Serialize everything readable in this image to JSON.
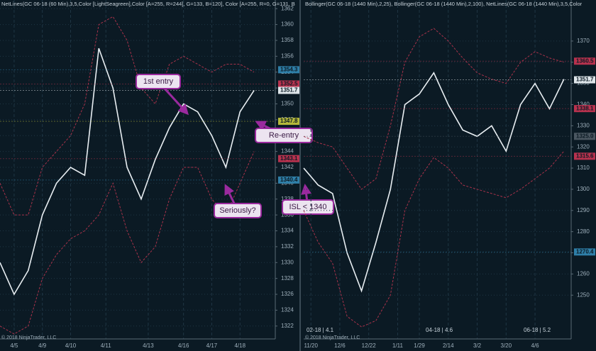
{
  "chart_data": [
    {
      "type": "line",
      "header": "NetLines(GC 06-18 (60 Min),3,5,Color [LightSeagreen],Color [A=255, R=244], G=133, B=120], Color [A=255, R=0, G=131, B",
      "footer": "© 2018 NinjaTrader, LLC",
      "xlim": [
        0,
        39
      ],
      "xticks": [
        {
          "value": 2,
          "label": "4/5"
        },
        {
          "value": 6,
          "label": "4/9"
        },
        {
          "value": 10,
          "label": "4/10"
        },
        {
          "value": 15,
          "label": "4/11"
        },
        {
          "value": 21,
          "label": "4/13"
        },
        {
          "value": 26,
          "label": "4/16"
        },
        {
          "value": 30,
          "label": "4/17"
        },
        {
          "value": 34,
          "label": "4/18"
        }
      ],
      "ylim": [
        1321,
        1363
      ],
      "yticks": [
        1322,
        1324,
        1326,
        1328,
        1330,
        1332,
        1334,
        1336,
        1338,
        1340,
        1342,
        1344,
        1346,
        1348,
        1350,
        1352,
        1354,
        1356,
        1358,
        1360,
        1362
      ],
      "grid": true,
      "x": [
        0,
        2,
        4,
        6,
        8,
        10,
        12,
        14,
        16,
        18,
        20,
        22,
        24,
        26,
        28,
        30,
        32,
        34,
        36
      ],
      "series": [
        {
          "name": "Price",
          "color": "#e8eef2",
          "values": [
            1330,
            1326,
            1329,
            1336,
            1340,
            1342,
            1341,
            1357,
            1352,
            1342,
            1338,
            1343,
            1347,
            1350,
            1349,
            1346,
            1342,
            1349,
            1351.7
          ]
        },
        {
          "name": "Upper band",
          "color": "#a8324a",
          "values": [
            1340,
            1336,
            1336,
            1342,
            1344,
            1346,
            1350,
            1360,
            1361,
            1358,
            1352,
            1350,
            1355,
            1356,
            1355,
            1354,
            1355,
            1355,
            1354
          ]
        },
        {
          "name": "Lower band",
          "color": "#a8324a",
          "values": [
            1322,
            1321,
            1322,
            1328,
            1331,
            1333,
            1334,
            1336,
            1340,
            1334,
            1330,
            1332,
            1338,
            1342,
            1342,
            1338,
            1336,
            1340,
            1344
          ]
        }
      ],
      "price_markers": [
        {
          "value": 1354.3,
          "label": "1354.3",
          "color": "#2f7fa8"
        },
        {
          "value": 1352.5,
          "label": "1352.5",
          "color": "#b8324e"
        },
        {
          "value": 1351.7,
          "label": "1351.7",
          "color": "#dfe6ea"
        },
        {
          "value": 1347.8,
          "label": "1347.8",
          "color": "#b5b83a"
        },
        {
          "value": 1343.1,
          "label": "1343.1",
          "color": "#b8324e"
        },
        {
          "value": 1340.4,
          "label": "1340.4",
          "color": "#2f7fa8"
        }
      ],
      "annotations": [
        "1st entry",
        "Re-entry",
        "Seriously?",
        "ISL < 1340"
      ]
    },
    {
      "type": "line",
      "header": "Bollinger(GC 06-18 (1440 Min),2,25), Bollinger(GC 06-18 (1440 Min),2,100), NetLines(GC 06-18 (1440 Min),3,5,Color",
      "footer": "© 2018 NinjaTrader, LLC",
      "xlim": [
        0,
        37
      ],
      "xticks": [
        {
          "value": 1,
          "label": "11/20"
        },
        {
          "value": 5,
          "label": "12/6"
        },
        {
          "value": 9,
          "label": "12/22"
        },
        {
          "value": 13,
          "label": "1/11"
        },
        {
          "value": 16,
          "label": "1/29"
        },
        {
          "value": 20,
          "label": "2/14"
        },
        {
          "value": 24,
          "label": "3/2"
        },
        {
          "value": 28,
          "label": "3/20"
        },
        {
          "value": 32,
          "label": "4/6"
        }
      ],
      "ylim": [
        1232,
        1378
      ],
      "yticks": [
        1250,
        1260,
        1270,
        1280,
        1290,
        1300,
        1310,
        1320,
        1330,
        1340,
        1350,
        1360,
        1370
      ],
      "grid": true,
      "x": [
        0,
        2,
        4,
        6,
        8,
        10,
        12,
        14,
        16,
        18,
        20,
        22,
        24,
        26,
        28,
        30,
        32,
        34,
        36
      ],
      "series": [
        {
          "name": "Price",
          "color": "#e8eef2",
          "values": [
            1310,
            1302,
            1298,
            1270,
            1252,
            1275,
            1300,
            1340,
            1345,
            1355,
            1340,
            1328,
            1325,
            1330,
            1318,
            1340,
            1350,
            1338,
            1352
          ]
        },
        {
          "name": "Upper band",
          "color": "#a8324a",
          "values": [
            1325,
            1322,
            1320,
            1310,
            1300,
            1305,
            1330,
            1360,
            1372,
            1376,
            1370,
            1362,
            1355,
            1352,
            1350,
            1360,
            1365,
            1362,
            1360
          ]
        },
        {
          "name": "Lower band",
          "color": "#a8324a",
          "values": [
            1290,
            1275,
            1265,
            1240,
            1235,
            1238,
            1250,
            1290,
            1305,
            1315,
            1310,
            1302,
            1300,
            1298,
            1296,
            1300,
            1305,
            1310,
            1318
          ]
        }
      ],
      "price_markers": [
        {
          "value": 1360.5,
          "label": "1360.5",
          "color": "#b8324e"
        },
        {
          "value": 1351.7,
          "label": "1351.7",
          "color": "#dfe6ea"
        },
        {
          "value": 1338.1,
          "label": "1338.1",
          "color": "#b8324e"
        },
        {
          "value": 1325,
          "label": "1325.0",
          "color": "#4a5660"
        },
        {
          "value": 1315.6,
          "label": "1315.6",
          "color": "#b8324e"
        },
        {
          "value": 1270.4,
          "label": "1270.4",
          "color": "#2f7fa8"
        }
      ],
      "contract_labels": [
        "02-18 | 4.1",
        "04-18 | 4.6",
        "06-18 | 5.2"
      ]
    }
  ]
}
